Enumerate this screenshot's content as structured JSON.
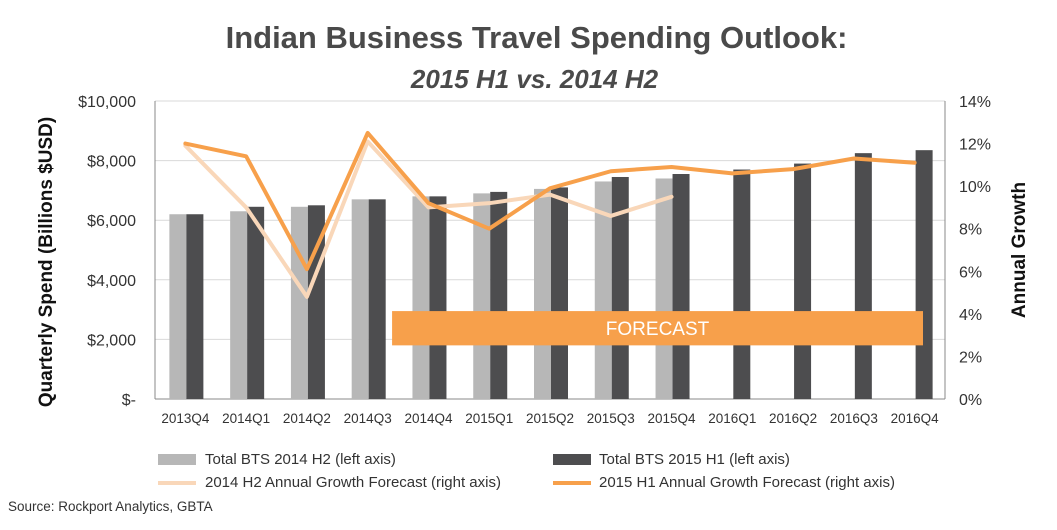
{
  "chart_data": {
    "type": "bar+line",
    "title": "Indian Business Travel Spending Outlook:",
    "subtitle": "2015 H1 vs. 2014 H2",
    "categories": [
      "2013Q4",
      "2014Q1",
      "2014Q2",
      "2014Q3",
      "2014Q4",
      "2015Q1",
      "2015Q2",
      "2015Q3",
      "2015Q4",
      "2016Q1",
      "2016Q2",
      "2016Q3",
      "2016Q4"
    ],
    "left_axis": {
      "label": "Quarterly Spend (Billions $USD)",
      "range": [
        0,
        10000
      ],
      "ticks": [
        0,
        2000,
        4000,
        6000,
        8000,
        10000
      ],
      "tick_labels": [
        "$-",
        "$2,000",
        "$4,000",
        "$6,000",
        "$8,000",
        "$10,000"
      ]
    },
    "right_axis": {
      "label": "Annual Growth",
      "range": [
        0,
        14
      ],
      "ticks": [
        0,
        2,
        4,
        6,
        8,
        10,
        12,
        14
      ],
      "tick_labels": [
        "0%",
        "2%",
        "4%",
        "6%",
        "8%",
        "10%",
        "12%",
        "14%"
      ]
    },
    "bar_series": [
      {
        "name": "Total BTS 2014 H2 (left axis)",
        "color": "#b7b7b7",
        "values": [
          6200,
          6300,
          6450,
          6700,
          6800,
          6900,
          7050,
          7300,
          7400,
          null,
          null,
          null,
          null
        ]
      },
      {
        "name": "Total BTS 2015 H1 (left axis)",
        "color": "#4d4d4f",
        "values": [
          6200,
          6450,
          6500,
          6700,
          6800,
          6950,
          7100,
          7450,
          7550,
          7700,
          7900,
          8250,
          8350
        ]
      }
    ],
    "line_series": [
      {
        "name": "2014 H2 Annual Growth Forecast (right axis)",
        "color": "#f9d7b9",
        "values": [
          11.9,
          9.0,
          4.8,
          12.1,
          9.0,
          9.2,
          9.6,
          8.6,
          9.5,
          null,
          null,
          null,
          null
        ]
      },
      {
        "name": "2015 H1 Annual Growth Forecast (right axis)",
        "color": "#f7a04b",
        "values": [
          12.0,
          11.4,
          6.1,
          12.5,
          9.2,
          8.0,
          9.9,
          10.7,
          10.9,
          10.6,
          10.8,
          11.3,
          11.1
        ]
      }
    ],
    "forecast_label": "FORECAST",
    "forecast_color": "#f7a04b",
    "forecast_span": {
      "from": "2014Q4",
      "to": "2016Q4",
      "y_range": [
        1800,
        2950
      ]
    }
  },
  "legend": [
    {
      "label": "Total BTS 2014 H2 (left axis)",
      "kind": "bar",
      "color": "#b7b7b7"
    },
    {
      "label": "Total BTS 2015 H1 (left axis)",
      "kind": "bar",
      "color": "#4d4d4f"
    },
    {
      "label": "2014 H2 Annual Growth Forecast (right axis)",
      "kind": "line",
      "color": "#f9d7b9"
    },
    {
      "label": "2015 H1 Annual Growth Forecast (right axis)",
      "kind": "line",
      "color": "#f7a04b"
    }
  ],
  "source": "Source: Rockport Analytics, GBTA"
}
